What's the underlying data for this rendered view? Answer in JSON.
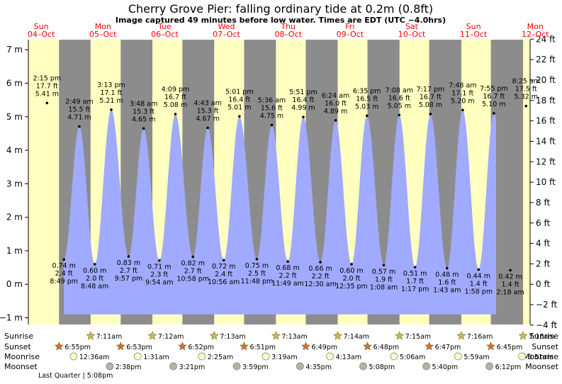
{
  "chart_data": {
    "type": "area",
    "title": "Cherry Grove Pier: falling  ordinary tide at 0.2m (0.8ft)",
    "subtitle": "Image captured 49 minutes before low water. Times are EDT (UTC −4.0hrs)",
    "y_left_unit": "m",
    "y_right_unit": "ft",
    "ylim_m": [
      -1.2,
      7.3
    ],
    "y_left_ticks": [
      -1,
      0,
      1,
      2,
      3,
      4,
      5,
      6,
      7
    ],
    "y_left_tick_labels": [
      "−1 m",
      "0 m",
      "1 m",
      "2 m",
      "3 m",
      "4 m",
      "5 m",
      "6 m",
      "7 m"
    ],
    "y_right_ticks_ft": [
      -4,
      -2,
      0,
      2,
      4,
      6,
      8,
      10,
      12,
      14,
      16,
      18,
      20,
      22,
      24
    ],
    "y_right_tick_labels": [
      "−4 ft",
      "−2 ft",
      "0 ft",
      "2 ft",
      "4 ft",
      "6 ft",
      "8 ft",
      "10 ft",
      "12 ft",
      "14 ft",
      "16 ft",
      "18 ft",
      "20 ft",
      "22 ft",
      "24 ft"
    ],
    "days": [
      {
        "dow": "Sun",
        "date": "04–Oct"
      },
      {
        "dow": "Mon",
        "date": "05–Oct"
      },
      {
        "dow": "Tue",
        "date": "06–Oct"
      },
      {
        "dow": "Wed",
        "date": "07–Oct"
      },
      {
        "dow": "Thu",
        "date": "08–Oct"
      },
      {
        "dow": "Fri",
        "date": "09–Oct"
      },
      {
        "dow": "Sat",
        "date": "10–Oct"
      },
      {
        "dow": "Sun",
        "date": "11–Oct"
      },
      {
        "dow": "Mon",
        "date": "12–Oct"
      }
    ],
    "x_start": "2020-10-04 07:00",
    "x_end": "2020-10-12 10:00",
    "night_periods": [
      [
        "10-04 18:55",
        "10-05 07:11"
      ],
      [
        "10-05 18:53",
        "10-06 07:12"
      ],
      [
        "10-06 18:52",
        "10-07 07:13"
      ],
      [
        "10-07 18:51",
        "10-08 07:13"
      ],
      [
        "10-08 18:49",
        "10-09 07:14"
      ],
      [
        "10-09 18:48",
        "10-10 07:15"
      ],
      [
        "10-10 18:47",
        "10-11 07:16"
      ],
      [
        "10-11 18:45",
        "10-12 07:16"
      ]
    ],
    "extremes": [
      {
        "t": "10-04 14:15",
        "type": "high",
        "time": "2:15 pm",
        "ft": "17.7 ft",
        "m": 5.41,
        "m_label": "5.41 m"
      },
      {
        "t": "10-04 20:49",
        "type": "low",
        "time": "8:49 pm",
        "ft": "2.4 ft",
        "m": 0.74,
        "m_label": "0.74 m"
      },
      {
        "t": "10-05 02:49",
        "type": "high",
        "time": "2:49 am",
        "ft": "15.5 ft",
        "m": 4.71,
        "m_label": "4.71 m"
      },
      {
        "t": "10-05 08:48",
        "type": "low",
        "time": "8:48 am",
        "ft": "2.0 ft",
        "m": 0.6,
        "m_label": "0.60 m"
      },
      {
        "t": "10-05 15:13",
        "type": "high",
        "time": "3:13 pm",
        "ft": "17.1 ft",
        "m": 5.21,
        "m_label": "5.21 m"
      },
      {
        "t": "10-05 21:57",
        "type": "low",
        "time": "9:57 pm",
        "ft": "2.7 ft",
        "m": 0.83,
        "m_label": "0.83 m"
      },
      {
        "t": "10-06 03:48",
        "type": "high",
        "time": "3:48 am",
        "ft": "15.3 ft",
        "m": 4.65,
        "m_label": "4.65 m"
      },
      {
        "t": "10-06 09:54",
        "type": "low",
        "time": "9:54 am",
        "ft": "2.3 ft",
        "m": 0.71,
        "m_label": "0.71 m"
      },
      {
        "t": "10-06 16:09",
        "type": "high",
        "time": "4:09 pm",
        "ft": "16.7 ft",
        "m": 5.08,
        "m_label": "5.08 m"
      },
      {
        "t": "10-06 22:58",
        "type": "low",
        "time": "10:58 pm",
        "ft": "2.7 ft",
        "m": 0.82,
        "m_label": "0.82 m"
      },
      {
        "t": "10-07 04:43",
        "type": "high",
        "time": "4:43 am",
        "ft": "15.3 ft",
        "m": 4.67,
        "m_label": "4.67 m"
      },
      {
        "t": "10-07 10:56",
        "type": "low",
        "time": "10:56 am",
        "ft": "2.4 ft",
        "m": 0.72,
        "m_label": "0.72 m"
      },
      {
        "t": "10-07 17:01",
        "type": "high",
        "time": "5:01 pm",
        "ft": "16.4 ft",
        "m": 5.01,
        "m_label": "5.01 m"
      },
      {
        "t": "10-07 23:48",
        "type": "low",
        "time": "11:48 pm",
        "ft": "2.5 ft",
        "m": 0.75,
        "m_label": "0.75 m"
      },
      {
        "t": "10-08 05:36",
        "type": "high",
        "time": "5:36 am",
        "ft": "15.6 ft",
        "m": 4.75,
        "m_label": "4.75 m"
      },
      {
        "t": "10-08 11:49",
        "type": "low",
        "time": "11:49 am",
        "ft": "2.2 ft",
        "m": 0.68,
        "m_label": "0.68 m"
      },
      {
        "t": "10-08 17:51",
        "type": "high",
        "time": "5:51 pm",
        "ft": "16.4 ft",
        "m": 4.99,
        "m_label": "4.99 m"
      },
      {
        "t": "10-09 00:30",
        "type": "low",
        "time": "12:30 am",
        "ft": "2.2 ft",
        "m": 0.66,
        "m_label": "0.66 m"
      },
      {
        "t": "10-09 06:24",
        "type": "high",
        "time": "6:24 am",
        "ft": "16.0 ft",
        "m": 4.89,
        "m_label": "4.89 m"
      },
      {
        "t": "10-09 12:35",
        "type": "low",
        "time": "12:35 pm",
        "ft": "2.0 ft",
        "m": 0.6,
        "m_label": "0.60 m"
      },
      {
        "t": "10-09 18:35",
        "type": "high",
        "time": "6:35 pm",
        "ft": "16.5 ft",
        "m": 5.03,
        "m_label": "5.03 m"
      },
      {
        "t": "10-10 01:08",
        "type": "low",
        "time": "1:08 am",
        "ft": "1.9 ft",
        "m": 0.57,
        "m_label": "0.57 m"
      },
      {
        "t": "10-10 07:08",
        "type": "high",
        "time": "7:08 am",
        "ft": "16.6 ft",
        "m": 5.05,
        "m_label": "5.05 m"
      },
      {
        "t": "10-10 13:17",
        "type": "low",
        "time": "1:17 pm",
        "ft": "1.7 ft",
        "m": 0.51,
        "m_label": "0.51 m"
      },
      {
        "t": "10-10 19:17",
        "type": "high",
        "time": "7:17 pm",
        "ft": "16.7 ft",
        "m": 5.08,
        "m_label": "5.08 m"
      },
      {
        "t": "10-11 01:43",
        "type": "low",
        "time": "1:43 am",
        "ft": "1.6 ft",
        "m": 0.48,
        "m_label": "0.48 m"
      },
      {
        "t": "10-11 07:48",
        "type": "high",
        "time": "7:48 am",
        "ft": "17.1 ft",
        "m": 5.2,
        "m_label": "5.20 m"
      },
      {
        "t": "10-11 13:58",
        "type": "low",
        "time": "1:58 pm",
        "ft": "1.4 ft",
        "m": 0.44,
        "m_label": "0.44 m"
      },
      {
        "t": "10-11 19:55",
        "type": "high",
        "time": "7:55 pm",
        "ft": "16.7 ft",
        "m": 5.1,
        "m_label": "5.10 m"
      },
      {
        "t": "10-12 02:18",
        "type": "low",
        "time": "2:18 am",
        "ft": "1.4 ft",
        "m": 0.42,
        "m_label": "0.42 m"
      },
      {
        "t": "10-12 08:25",
        "type": "high",
        "time": "8:25 am",
        "ft": "17.5 ft",
        "m": 5.32,
        "m_label": "5.32 m"
      }
    ],
    "astro_labels": {
      "sunrise": "Sunrise",
      "sunset": "Sunset",
      "moonrise": "Moonrise",
      "moonset": "Moonset"
    },
    "sunrise": [
      {
        "t": "10-05 07:11",
        "label": "7:11am"
      },
      {
        "t": "10-06 07:12",
        "label": "7:12am"
      },
      {
        "t": "10-07 07:13",
        "label": "7:13am"
      },
      {
        "t": "10-08 07:13",
        "label": "7:13am"
      },
      {
        "t": "10-09 07:14",
        "label": "7:14am"
      },
      {
        "t": "10-10 07:15",
        "label": "7:15am"
      },
      {
        "t": "10-11 07:16",
        "label": "7:16am"
      },
      {
        "t": "10-12 07:16",
        "label": "7:16am"
      }
    ],
    "sunset": [
      {
        "t": "10-04 18:55",
        "label": "6:55pm"
      },
      {
        "t": "10-05 18:53",
        "label": "6:53pm"
      },
      {
        "t": "10-06 18:52",
        "label": "6:52pm"
      },
      {
        "t": "10-07 18:51",
        "label": "6:51pm"
      },
      {
        "t": "10-08 18:49",
        "label": "6:49pm"
      },
      {
        "t": "10-09 18:48",
        "label": "6:48pm"
      },
      {
        "t": "10-10 18:47",
        "label": "6:47pm"
      },
      {
        "t": "10-11 18:45",
        "label": "6:45pm"
      }
    ],
    "moonrise": [
      {
        "t": "10-05 00:36",
        "label": "12:36am"
      },
      {
        "t": "10-06 01:31",
        "label": "1:31am"
      },
      {
        "t": "10-07 02:25",
        "label": "2:25am"
      },
      {
        "t": "10-08 03:19",
        "label": "3:19am"
      },
      {
        "t": "10-09 04:13",
        "label": "4:13am"
      },
      {
        "t": "10-10 05:06",
        "label": "5:06am"
      },
      {
        "t": "10-11 05:59",
        "label": "5:59am"
      },
      {
        "t": "10-12 06:51",
        "label": "6:51am"
      }
    ],
    "moonset": [
      {
        "t": "10-05 14:38",
        "label": "2:38pm"
      },
      {
        "t": "10-06 15:21",
        "label": "3:21pm"
      },
      {
        "t": "10-07 15:59",
        "label": "3:59pm"
      },
      {
        "t": "10-08 16:35",
        "label": "4:35pm"
      },
      {
        "t": "10-09 17:08",
        "label": "5:08pm"
      },
      {
        "t": "10-10 17:40",
        "label": "5:40pm"
      },
      {
        "t": "10-11 18:12",
        "label": "6:12pm"
      }
    ],
    "moon_phase_note": "Last Quarter | 5:08pm",
    "colors": {
      "day": "#ffffc0",
      "night": "#8c8c8c",
      "water": "#a0aaff",
      "day_label": "#ff0000",
      "sun_star": "#c8be50",
      "sunset_star": "#d26e3c",
      "moon": "#ffffc8",
      "moonset": "#b4b4a0"
    }
  }
}
